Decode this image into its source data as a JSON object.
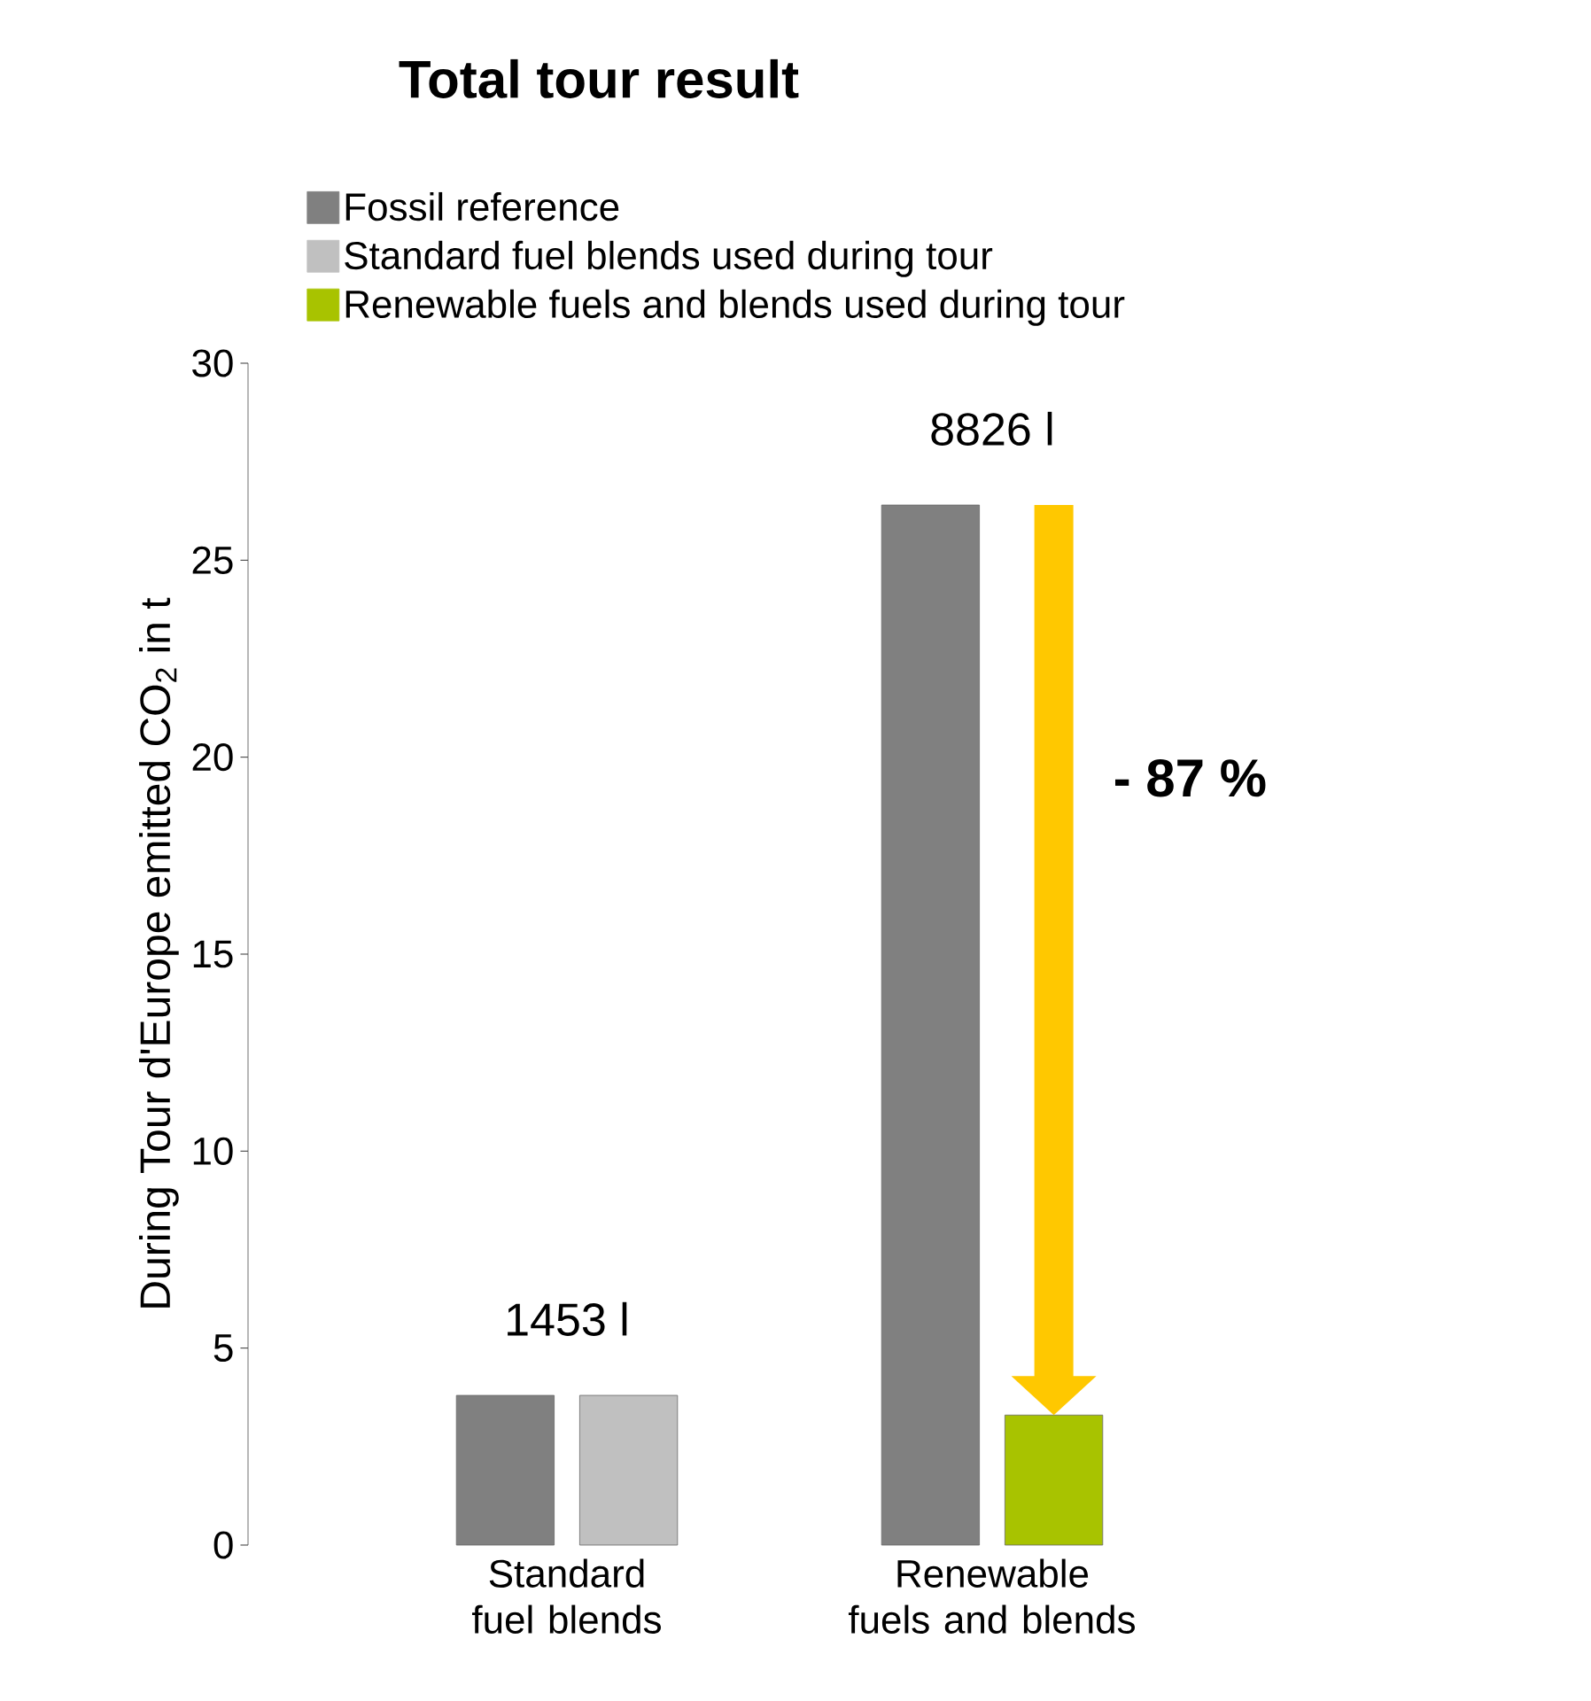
{
  "chart_data": {
    "type": "bar",
    "title": "Total tour result",
    "ylabel": "During Tour d'Europe emitted CO$_{2}$ in t",
    "categories": [
      "Standard fuel blends",
      "Renewable fuels and blends"
    ],
    "series": [
      {
        "name": "Fossil reference",
        "color": "#808080",
        "values": [
          3.8,
          26.4
        ]
      },
      {
        "name": "Standard fuel blends used during tour",
        "color": "#c0c0c0",
        "values": [
          3.8,
          null
        ]
      },
      {
        "name": "Renewable fuels and blends used during tour",
        "color": "#a8c300",
        "values": [
          null,
          3.3
        ]
      }
    ],
    "ylim": [
      0,
      30
    ],
    "yticks": [
      0,
      5,
      10,
      15,
      20,
      25,
      30
    ],
    "legend": "top left",
    "annotations": [
      "1453 l",
      "8826 l",
      "- 87 %"
    ]
  }
}
